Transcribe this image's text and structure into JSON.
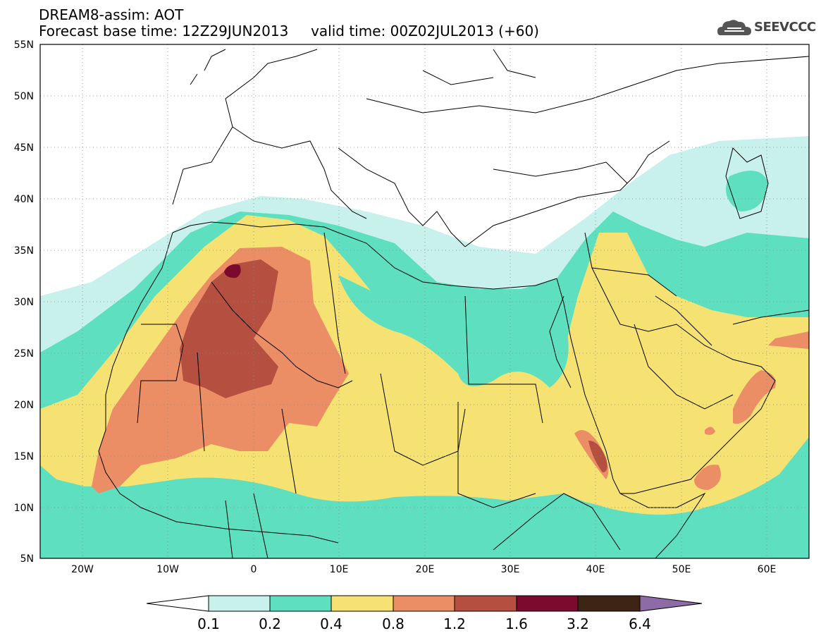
{
  "title": {
    "line1": "DREAM8-assim: AOT",
    "line2": "Forecast base time: 12Z29JUN2013     valid time: 00Z02JUL2013 (+60)"
  },
  "logo": {
    "text": "SEEVCCC",
    "icon": "cloud-icon"
  },
  "map": {
    "lat_labels": [
      "55N",
      "50N",
      "45N",
      "40N",
      "35N",
      "30N",
      "25N",
      "20N",
      "15N",
      "10N",
      "5N"
    ],
    "lon_labels": [
      "20W",
      "10W",
      "0",
      "10E",
      "20E",
      "30E",
      "40E",
      "50E",
      "60E"
    ],
    "lon_range": [
      -25,
      65
    ],
    "lat_range": [
      5,
      55
    ],
    "field": "Aerosol optical thickness (dust)"
  },
  "legend": {
    "levels": [
      "0.1",
      "0.2",
      "0.4",
      "0.8",
      "1.2",
      "1.6",
      "3.2",
      "6.4"
    ],
    "colors": [
      "#c8f0ec",
      "#5ee0c0",
      "#f5e273",
      "#eb8e66",
      "#b54f40",
      "#7c0a2e",
      "#3e2415",
      "#8e6aa7"
    ]
  },
  "colors": {
    "c01": "#c8f0ec",
    "c02": "#5ee0c0",
    "c04": "#f5e273",
    "c08": "#eb8e66",
    "c12": "#b54f40",
    "c16": "#7c0a2e"
  }
}
